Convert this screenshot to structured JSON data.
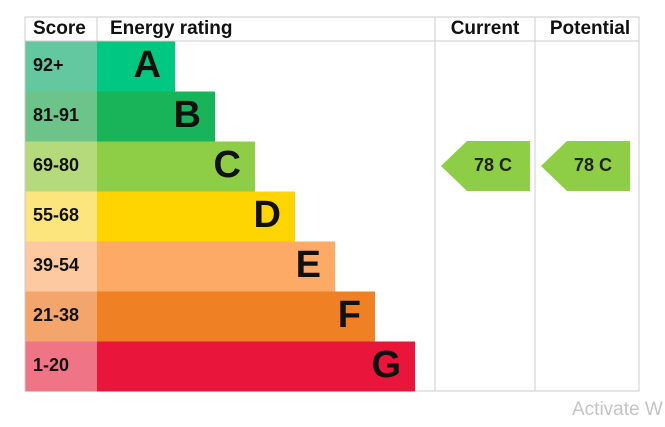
{
  "header": [
    "Score",
    "Energy rating",
    "Current",
    "Potential"
  ],
  "rows": [
    {
      "score": "92+",
      "band": "A"
    },
    {
      "score": "81-91",
      "band": "B"
    },
    {
      "score": "69-80",
      "band": "C"
    },
    {
      "score": "55-68",
      "band": "D"
    },
    {
      "score": "39-54",
      "band": "E"
    },
    {
      "score": "21-38",
      "band": "F"
    },
    {
      "score": "1-20",
      "band": "G"
    }
  ],
  "current": "78 C",
  "potential": "78 C",
  "watermark": "Activate W"
}
